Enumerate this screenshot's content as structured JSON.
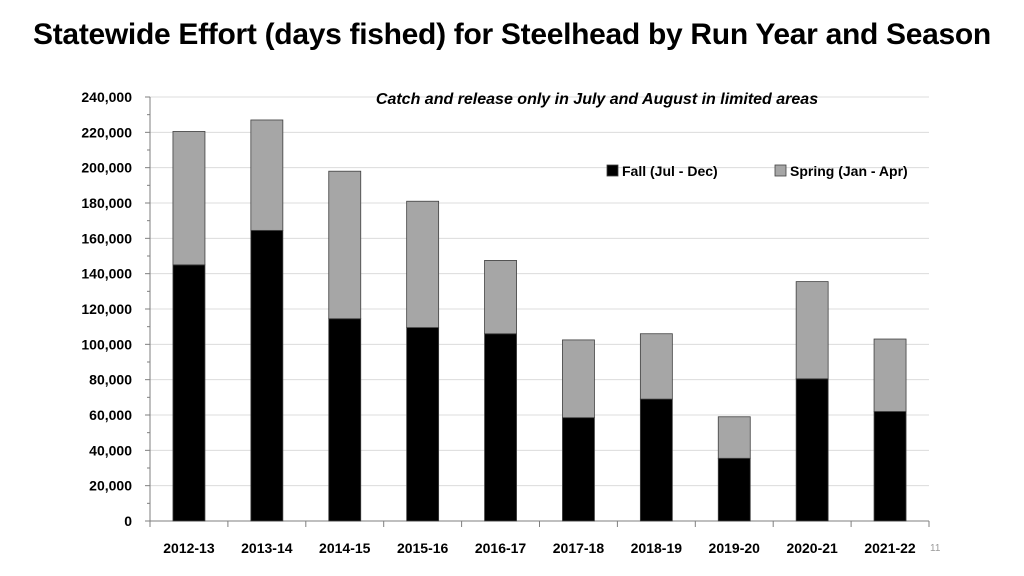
{
  "slide": {
    "page_number": "11"
  },
  "chart_data": {
    "type": "bar",
    "stacked": true,
    "title": "Statewide Effort (days fished) for Steelhead by Run Year and Season",
    "annotation": "Catch and release only in July and August in limited areas",
    "categories": [
      "2012-13",
      "2013-14",
      "2014-15",
      "2015-16",
      "2016-17",
      "2017-18",
      "2018-19",
      "2019-20",
      "2020-21",
      "2021-22"
    ],
    "series": [
      {
        "name": "Fall (Jul - Dec)",
        "color": "#000000",
        "values": [
          145000,
          164500,
          114500,
          109500,
          106000,
          58500,
          69000,
          35500,
          80500,
          62000
        ]
      },
      {
        "name": "Spring (Jan - Apr)",
        "color": "#a6a6a6",
        "values": [
          75500,
          62500,
          83500,
          71500,
          41500,
          44000,
          37000,
          23500,
          55000,
          41000
        ]
      }
    ],
    "ylim": [
      0,
      240000
    ],
    "yticks": [
      "0",
      "20,000",
      "40,000",
      "60,000",
      "80,000",
      "100,000",
      "120,000",
      "140,000",
      "160,000",
      "180,000",
      "200,000",
      "220,000",
      "240,000"
    ],
    "xlabel": "",
    "ylabel": "",
    "grid": true,
    "legend": "top-right"
  }
}
